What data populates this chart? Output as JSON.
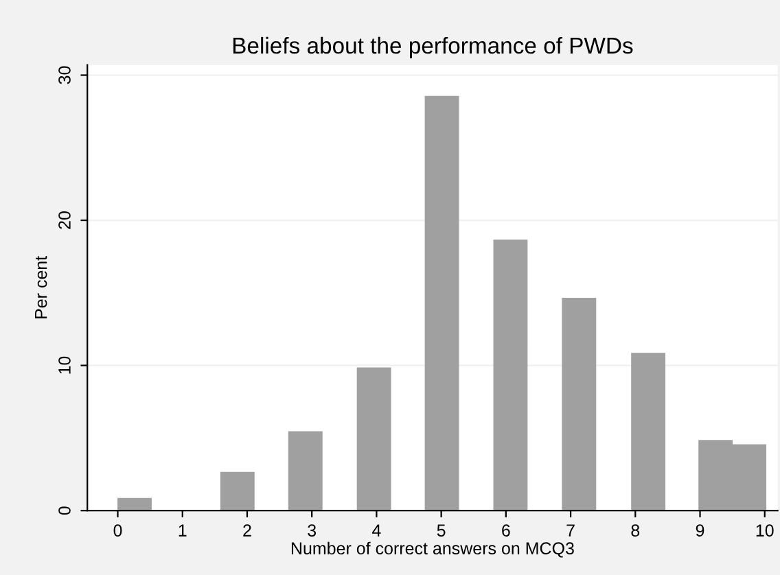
{
  "chart_data": {
    "type": "bar",
    "title": "Beliefs about the performance of PWDs",
    "xlabel": "Number of correct answers on MCQ3",
    "ylabel": "Per cent",
    "x": [
      0.26,
      1.85,
      2.9,
      3.96,
      5.01,
      6.07,
      7.13,
      8.2,
      9.24,
      9.76
    ],
    "values": [
      0.8,
      2.6,
      5.4,
      9.8,
      28.5,
      18.6,
      14.6,
      10.8,
      4.8,
      4.5
    ],
    "color": "#a0a0a0",
    "xlim": [
      -0.47,
      10.2
    ],
    "xticks": [
      0,
      1,
      2,
      3,
      4,
      5,
      6,
      7,
      8,
      9,
      10
    ],
    "ylim": [
      0,
      30.7
    ],
    "yticks": [
      0,
      10,
      20,
      30
    ],
    "grid": "y"
  }
}
